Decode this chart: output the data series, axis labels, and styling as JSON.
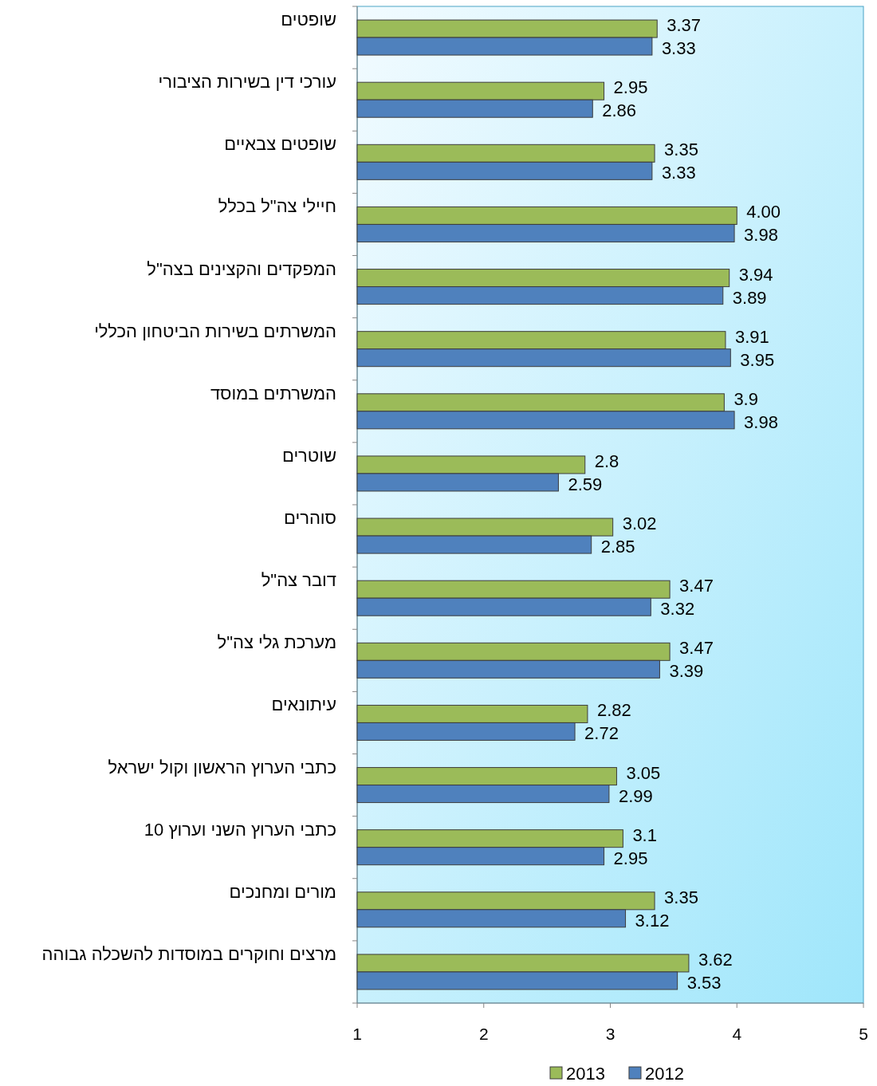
{
  "chart_data": {
    "type": "bar",
    "orientation": "horizontal",
    "categories": [
      "שופטים",
      "עורכי דין בשירות הציבורי",
      "שופטים צבאיים",
      "חיילי צה\"ל בכלל",
      "המפקדים והקצינים בצה\"ל",
      "המשרתים בשירות הביטחון הכללי",
      "המשרתים במוסד",
      "שוטרים",
      "סוהרים",
      "דובר צה\"ל",
      "מערכת גלי צה\"ל",
      "עיתונאים",
      "כתבי הערוץ הראשון וקול ישראל",
      "כתבי הערוץ השני וערוץ 10",
      "מורים ומחנכים",
      "מרצים וחוקרים במוסדות להשכלה גבוהה"
    ],
    "series": [
      {
        "name": "2013",
        "color": "#9bbb59",
        "values": [
          3.37,
          2.95,
          3.35,
          4.0,
          3.94,
          3.91,
          3.9,
          2.8,
          3.02,
          3.47,
          3.47,
          2.82,
          3.05,
          3.1,
          3.35,
          3.62
        ],
        "value_labels": [
          "3.37",
          "2.95",
          "3.35",
          "4.00",
          "3.94",
          "3.91",
          "3.9",
          "2.8",
          "3.02",
          "3.47",
          "3.47",
          "2.82",
          "3.05",
          "3.1",
          "3.35",
          "3.62"
        ]
      },
      {
        "name": "2012",
        "color": "#4f81bd",
        "values": [
          3.33,
          2.86,
          3.33,
          3.98,
          3.89,
          3.95,
          3.98,
          2.59,
          2.85,
          3.32,
          3.39,
          2.72,
          2.99,
          2.95,
          3.12,
          3.53
        ],
        "value_labels": [
          "3.33",
          "2.86",
          "3.33",
          "3.98",
          "3.89",
          "3.95",
          "3.98",
          "2.59",
          "2.85",
          "3.32",
          "3.39",
          "2.72",
          "2.99",
          "2.95",
          "3.12",
          "3.53"
        ]
      }
    ],
    "xlim": [
      1,
      5
    ],
    "xticks": [
      1,
      2,
      3,
      4,
      5
    ],
    "grid": false,
    "legend": "bottom"
  }
}
